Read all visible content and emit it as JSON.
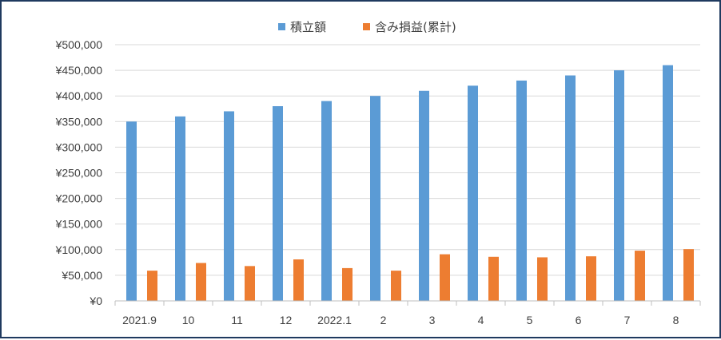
{
  "chart_data": {
    "type": "bar",
    "title": "",
    "xlabel": "",
    "ylabel": "",
    "categories": [
      "2021.9",
      "10",
      "11",
      "12",
      "2022.1",
      "2",
      "3",
      "4",
      "5",
      "6",
      "7",
      "8"
    ],
    "series": [
      {
        "name": "積立額",
        "color": "#5b9bd5",
        "values": [
          350000,
          360000,
          370000,
          380000,
          390000,
          400000,
          410000,
          420000,
          430000,
          440000,
          450000,
          460000
        ]
      },
      {
        "name": "含み損益(累計)",
        "color": "#ed7d31",
        "values": [
          59000,
          74000,
          68000,
          81000,
          64000,
          59000,
          91000,
          86000,
          85000,
          87000,
          98000,
          101000
        ]
      }
    ],
    "ylim": [
      0,
      500000
    ],
    "y_ticks": [
      0,
      50000,
      100000,
      150000,
      200000,
      250000,
      300000,
      350000,
      400000,
      450000,
      500000
    ],
    "y_tick_labels": [
      "¥0",
      "¥50,000",
      "¥100,000",
      "¥150,000",
      "¥200,000",
      "¥250,000",
      "¥300,000",
      "¥350,000",
      "¥400,000",
      "¥450,000",
      "¥500,000"
    ],
    "grid": true,
    "legend_position": "top-center"
  }
}
